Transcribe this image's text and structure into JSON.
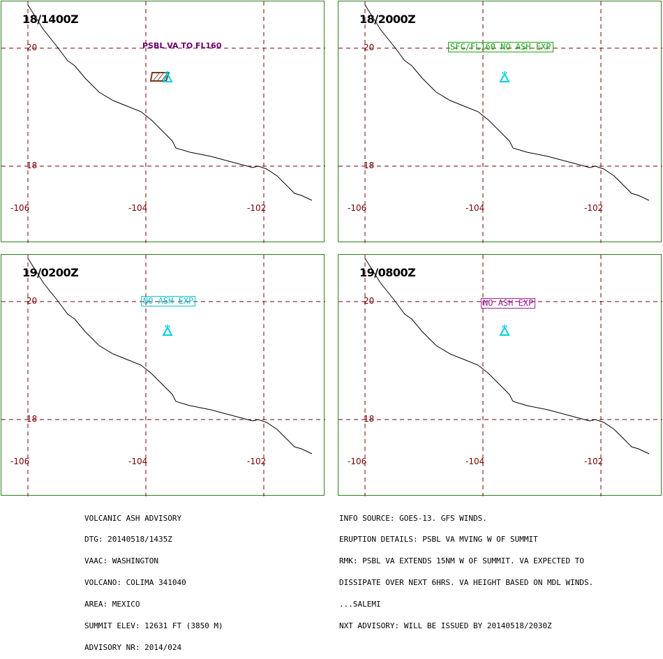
{
  "colors": {
    "frame": "#2e7d1f",
    "grid": "#7a0000",
    "coast": "#000000",
    "volcano": "#00d0e0",
    "ash_area": "#7a3a1a"
  },
  "panels": [
    {
      "time": "18/1400Z",
      "annotation": "PSBL VA TO FL160",
      "annotation_color": "#6a006a",
      "annotation_boxed": false,
      "ash_area": true,
      "lat_labels": [
        "20",
        "18"
      ],
      "lon_labels": [
        "-106",
        "-104",
        "-102"
      ]
    },
    {
      "time": "18/2000Z",
      "annotation": "SFC/FL160 NO ASH EXP",
      "annotation_color": "#1aa51a",
      "annotation_boxed": true,
      "ash_area": false,
      "lat_labels": [
        "20",
        "18"
      ],
      "lon_labels": [
        "-106",
        "-104",
        "-102"
      ]
    },
    {
      "time": "19/0200Z",
      "annotation": "NO ASH EXP",
      "annotation_color": "#10c0d0",
      "annotation_boxed": true,
      "ash_area": false,
      "lat_labels": [
        "20",
        "18"
      ],
      "lon_labels": [
        "-106",
        "-104",
        "-102"
      ]
    },
    {
      "time": "19/0800Z",
      "annotation": "NO ASH EXP",
      "annotation_color": "#a020a0",
      "annotation_boxed": true,
      "ash_area": false,
      "lat_labels": [
        "20",
        "18"
      ],
      "lon_labels": [
        "-106",
        "-104",
        "-102"
      ]
    }
  ],
  "advisory": {
    "left": [
      "VOLCANIC ASH ADVISORY",
      "DTG: 20140518/1435Z",
      "VAAC: WASHINGTON",
      "VOLCANO: COLIMA 341040",
      "AREA: MEXICO",
      "SUMMIT ELEV: 12631 FT (3850 M)",
      "ADVISORY NR: 2014/024"
    ],
    "right": [
      "INFO SOURCE: GOES-13. GFS WINDS.",
      "ERUPTION DETAILS: PSBL VA MVING W OF SUMMIT",
      "RMK: PSBL VA EXTENDS 15NM W OF SUMMIT. VA EXPECTED TO",
      "DISSIPATE OVER NEXT 6HRS. VA HEIGHT BASED ON MDL WINDS.",
      "...SALEMI",
      "NXT ADVISORY: WILL BE ISSUED BY 20140518/2030Z"
    ]
  }
}
